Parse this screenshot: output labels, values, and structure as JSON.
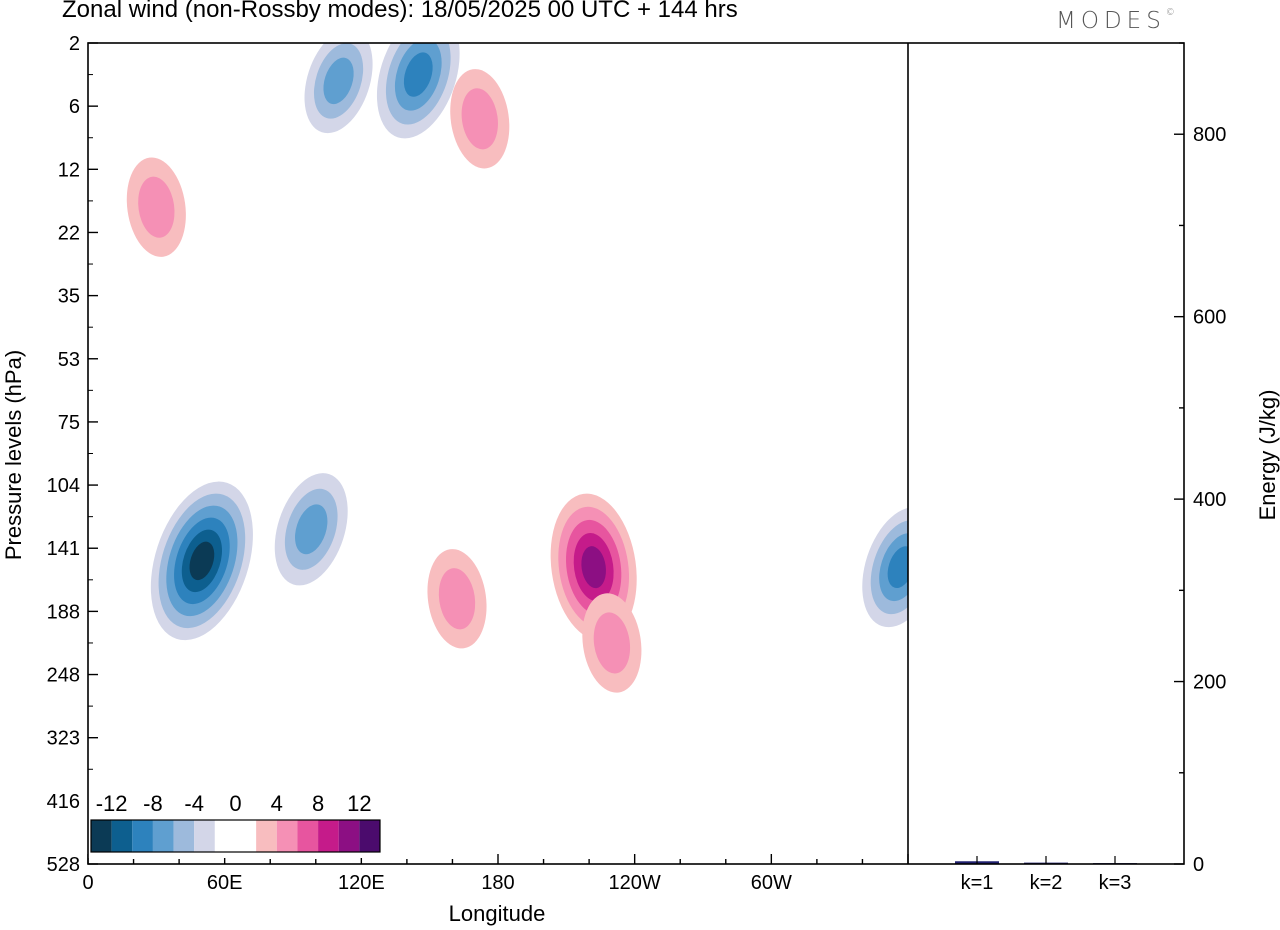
{
  "title": "Zonal wind (non-Rossby modes):  18/05/2025  00 UTC  + 144 hrs",
  "brand": "MODES",
  "brand_mark": "©",
  "chart_data": [
    {
      "type": "heatmap",
      "title": "Zonal wind (non-Rossby modes):  18/05/2025  00 UTC  + 144 hrs",
      "xlabel": "Longitude",
      "ylabel": "Pressure levels (hPa)",
      "x_ticks": [
        {
          "lon": 0,
          "label": "0"
        },
        {
          "lon": 60,
          "label": "60E"
        },
        {
          "lon": 120,
          "label": "120E"
        },
        {
          "lon": 180,
          "label": "180"
        },
        {
          "lon": 240,
          "label": "120W"
        },
        {
          "lon": 300,
          "label": "60W"
        }
      ],
      "xlim": [
        0,
        360
      ],
      "y_levels": [
        "2",
        "6",
        "12",
        "22",
        "35",
        "53",
        "75",
        "104",
        "141",
        "188",
        "248",
        "323",
        "416",
        "528"
      ],
      "y_scale": "level index (top to bottom)",
      "colorbar": {
        "labels": [
          "-12",
          "-8",
          "-4",
          "0",
          "4",
          "8",
          "12"
        ],
        "colors": [
          "#0b3a55",
          "#0d5f8f",
          "#2d82bd",
          "#5f9fd0",
          "#9dbadc",
          "#d3d6e8",
          "#ffffff",
          "#ffffff",
          "#f8bdbf",
          "#f590b5",
          "#e7559f",
          "#c51b8a",
          "#8c0f83",
          "#4b0b6d"
        ]
      },
      "features": [
        {
          "lon": 50,
          "level": 8.2,
          "value": -13
        },
        {
          "lon": 98,
          "level": 7.7,
          "value": -7
        },
        {
          "lon": 145,
          "level": 0.5,
          "value": -9
        },
        {
          "lon": 110,
          "level": 0.6,
          "value": -6
        },
        {
          "lon": 357,
          "level": 8.3,
          "value": -8
        },
        {
          "lon": 222,
          "level": 8.3,
          "value": 11
        },
        {
          "lon": 162,
          "level": 8.8,
          "value": 5
        },
        {
          "lon": 230,
          "level": 9.5,
          "value": 5
        },
        {
          "lon": 30,
          "level": 2.6,
          "value": 5
        },
        {
          "lon": 172,
          "level": 1.2,
          "value": 5
        }
      ]
    },
    {
      "type": "bar",
      "ylabel": "Energy (J/kg)",
      "ylim": [
        0,
        900
      ],
      "y_ticks": [
        0,
        200,
        400,
        600,
        800
      ],
      "categories": [
        "k=1",
        "k=2",
        "k=3"
      ],
      "values": [
        3,
        1.5,
        1
      ],
      "bar_color": "#1f1f6e"
    }
  ]
}
